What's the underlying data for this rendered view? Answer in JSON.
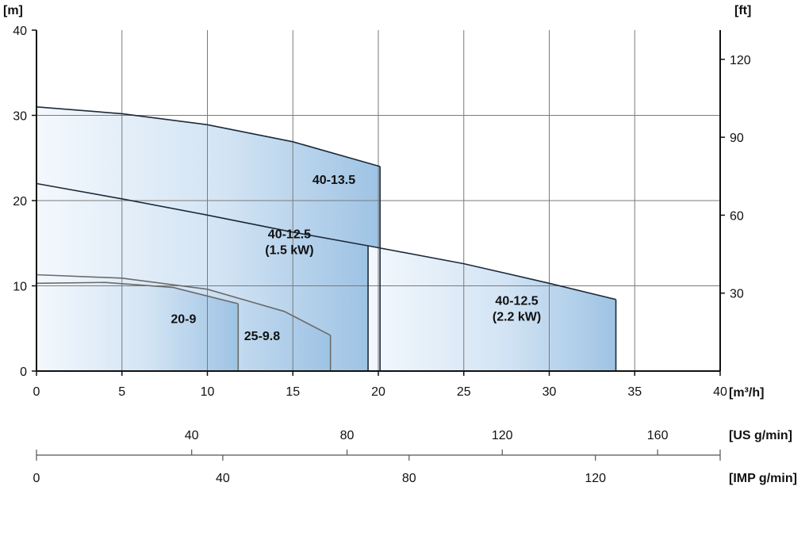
{
  "chart_data": {
    "type": "area",
    "title": "",
    "xlabel": "[m³/h]",
    "ylabel": "[m]",
    "y2label": "[ft]",
    "xlim": [
      0,
      40
    ],
    "ylim": [
      0,
      40
    ],
    "grid": true,
    "x_ticks": [
      "0",
      "5",
      "10",
      "15",
      "20",
      "25",
      "30",
      "35",
      "40"
    ],
    "y_ticks": [
      "0",
      "10",
      "20",
      "30",
      "40"
    ],
    "y2_ticks": [
      "30",
      "60",
      "90",
      "120"
    ],
    "x_axis_us": {
      "label": "[US g/min]",
      "ticks": [
        {
          "label": "40",
          "m3h": 9.08
        },
        {
          "label": "80",
          "m3h": 18.17
        },
        {
          "label": "120",
          "m3h": 27.25
        },
        {
          "label": "160",
          "m3h": 36.34
        }
      ]
    },
    "x_axis_imp": {
      "label": "[IMP g/min]",
      "ticks": [
        {
          "label": "0",
          "m3h": 0
        },
        {
          "label": "40",
          "m3h": 10.9
        },
        {
          "label": "80",
          "m3h": 21.8
        },
        {
          "label": "120",
          "m3h": 32.7
        }
      ]
    },
    "series": [
      {
        "name": "40-13.5",
        "label_lines": [
          "40-13.5"
        ],
        "label_at": [
          17.4,
          22.5
        ],
        "points": [
          [
            0,
            31
          ],
          [
            5,
            30.2
          ],
          [
            10,
            28.9
          ],
          [
            15,
            26.9
          ],
          [
            20.1,
            24
          ]
        ]
      },
      {
        "name": "40-12.5 (1.5 kW)",
        "label_lines": [
          "40-12.5",
          "(1.5 kW)"
        ],
        "label_at": [
          14.8,
          15.2
        ],
        "points": [
          [
            0,
            22
          ],
          [
            5,
            20.2
          ],
          [
            10,
            18.3
          ],
          [
            15,
            16.3
          ],
          [
            19.4,
            14.7
          ]
        ]
      },
      {
        "name": "40-12.5 (2.2 kW)",
        "label_lines": [
          "40-12.5",
          "(2.2 kW)"
        ],
        "label_at": [
          28.1,
          7.4
        ],
        "points": [
          [
            19.4,
            14.7
          ],
          [
            25,
            12.6
          ],
          [
            30,
            10.3
          ],
          [
            33.9,
            8.4
          ]
        ]
      },
      {
        "name": "25-9.8",
        "label_lines": [
          "25-9.8"
        ],
        "label_at": [
          13.2,
          4.2
        ],
        "points": [
          [
            0,
            11.3
          ],
          [
            5,
            10.9
          ],
          [
            10,
            9.6
          ],
          [
            14.5,
            7
          ],
          [
            17.2,
            4.2
          ]
        ]
      },
      {
        "name": "20-9",
        "label_lines": [
          "20-9"
        ],
        "label_at": [
          8.6,
          6.2
        ],
        "points": [
          [
            0,
            10.3
          ],
          [
            4,
            10.4
          ],
          [
            8,
            9.8
          ],
          [
            11.8,
            7.9
          ]
        ]
      }
    ]
  }
}
